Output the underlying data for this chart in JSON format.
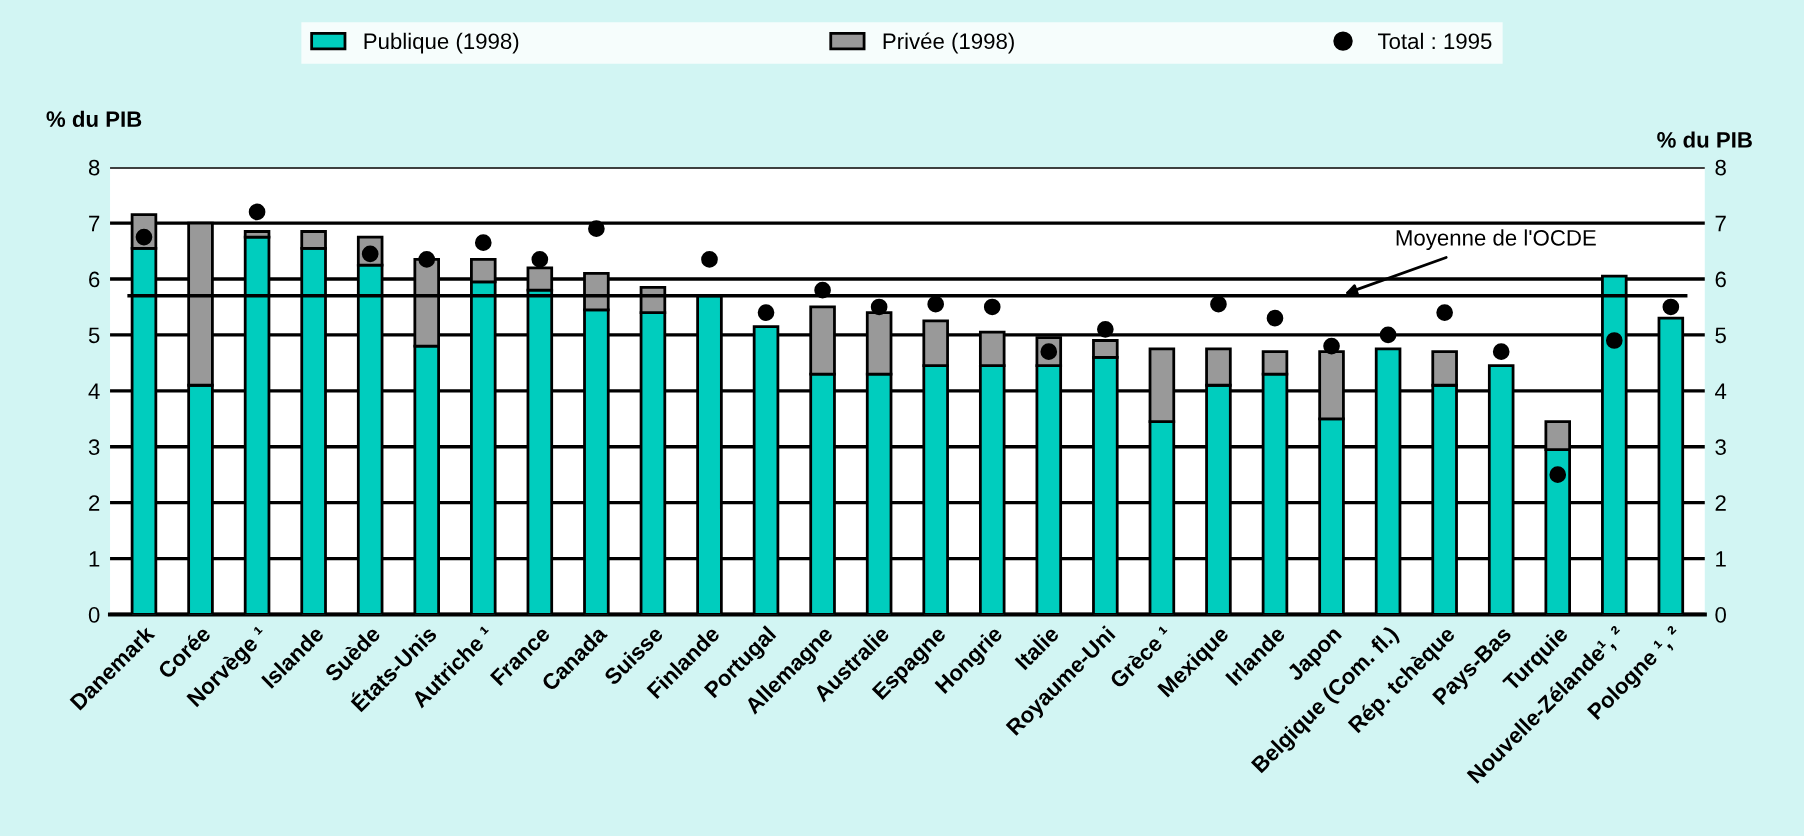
{
  "chart_data": {
    "type": "bar",
    "stacked": true,
    "categories": [
      "Danemark",
      "Corée",
      "Norvège ¹",
      "Islande",
      "Suède",
      "États-Unis",
      "Autriche ¹",
      "France",
      "Canada",
      "Suisse",
      "Finlande",
      "Portugal",
      "Allemagne",
      "Australie",
      "Espagne",
      "Hongrie",
      "Italie",
      "Royaume-Uni",
      "Grèce ¹",
      "Mexique",
      "Irlande",
      "Japon",
      "Belgique (Com. fl.)",
      "Rép. tchèque",
      "Pays-Bas",
      "Turquie",
      "Nouvelle-Zélande¹, ²",
      "Pologne ¹, ²"
    ],
    "series": [
      {
        "name": "Publique (1998)",
        "color": "#00cdbe",
        "values": [
          6.55,
          4.1,
          6.75,
          6.55,
          6.25,
          4.8,
          5.95,
          5.8,
          5.45,
          5.4,
          5.7,
          5.15,
          4.3,
          4.3,
          4.45,
          4.45,
          4.45,
          4.6,
          3.45,
          4.1,
          4.3,
          3.5,
          4.75,
          4.1,
          4.45,
          2.95,
          6.05,
          5.3
        ]
      },
      {
        "name": "Privée (1998)",
        "color": "#999999",
        "values": [
          0.6,
          2.9,
          0.1,
          0.3,
          0.5,
          1.55,
          0.4,
          0.4,
          0.65,
          0.45,
          null,
          null,
          1.2,
          1.1,
          0.8,
          0.6,
          0.5,
          0.3,
          1.3,
          0.65,
          0.4,
          1.2,
          null,
          0.6,
          null,
          0.5,
          null,
          null
        ]
      },
      {
        "name": "Total : 1995",
        "type": "scatter",
        "color": "#000000",
        "marker": "circle",
        "values": [
          6.75,
          null,
          7.2,
          null,
          6.45,
          6.35,
          6.65,
          6.35,
          6.9,
          null,
          6.35,
          5.4,
          5.8,
          5.5,
          5.55,
          5.5,
          4.7,
          5.1,
          null,
          5.55,
          5.3,
          4.8,
          5.0,
          5.4,
          4.7,
          2.5,
          4.9,
          5.5
        ]
      }
    ],
    "ylabel": "% du PIB",
    "y2label": "% du PIB",
    "ylim": [
      0,
      8
    ],
    "yticks": [
      0,
      1,
      2,
      3,
      4,
      5,
      6,
      7,
      8
    ],
    "y2lim": [
      0,
      8
    ],
    "y2ticks": [
      0,
      1,
      2,
      3,
      4,
      5,
      6,
      7,
      8
    ],
    "ref_lines": [
      {
        "axis": "y",
        "value": 5.7,
        "label": "Moyenne de l'OCDE",
        "color": "#000000"
      }
    ],
    "grid": "y",
    "legend": "top"
  }
}
